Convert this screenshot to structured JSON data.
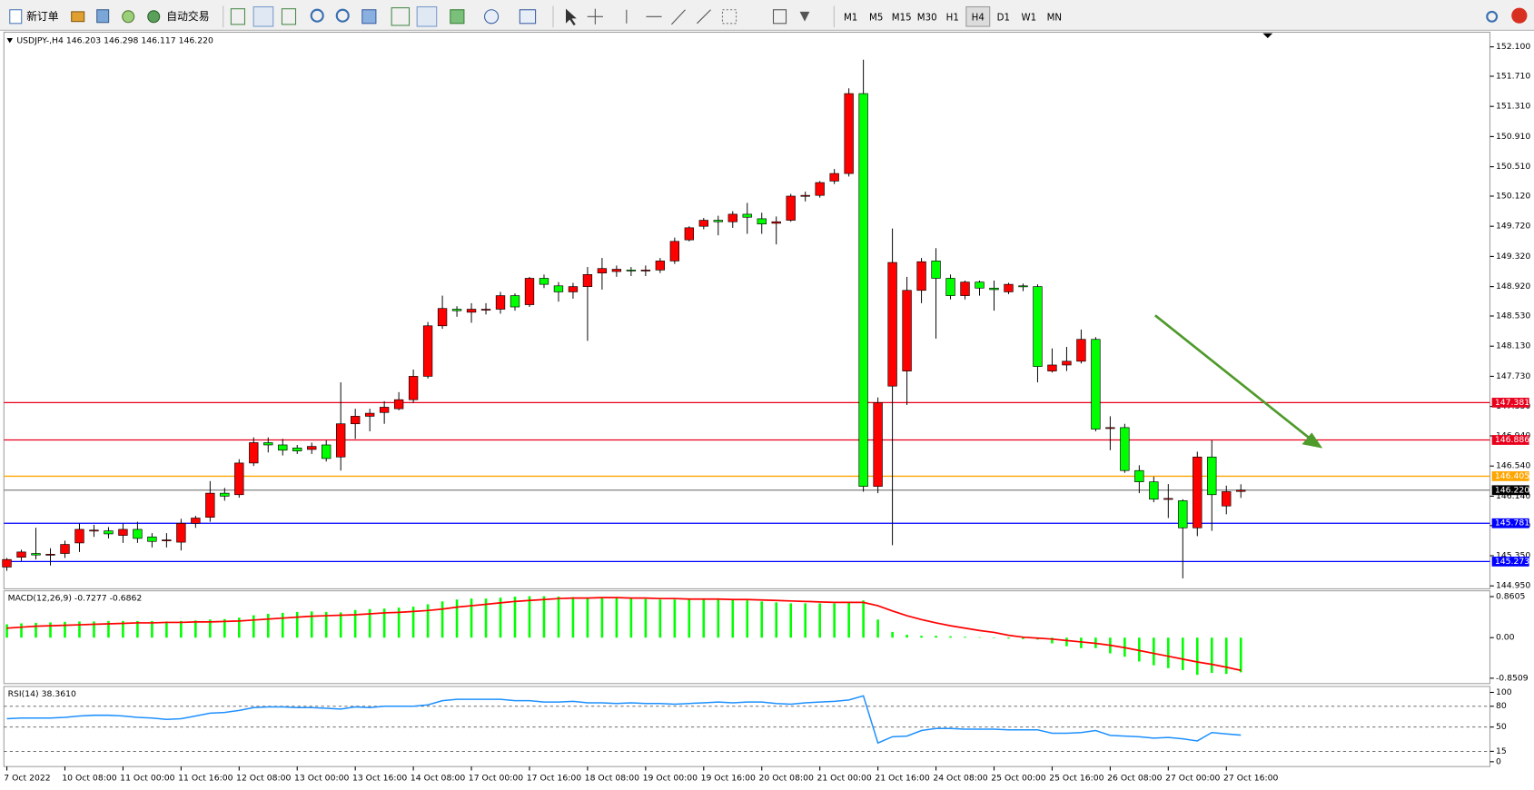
{
  "toolbar": {
    "new_order": "新订单",
    "auto_trading": "自动交易",
    "timeframes": [
      "M1",
      "M5",
      "M15",
      "M30",
      "H1",
      "H4",
      "D1",
      "W1",
      "MN"
    ],
    "active_timeframe": "H4"
  },
  "chart_data": [
    {
      "type": "candlestick",
      "title": "USDJPY-,H4  146.203 146.298 146.117 146.220",
      "categories": [
        "7 Oct 2022",
        null,
        null,
        null,
        "10 Oct 08:00",
        null,
        null,
        null,
        "11 Oct 00:00",
        null,
        null,
        null,
        "11 Oct 16:00",
        null,
        null,
        null,
        "12 Oct 08:00",
        null,
        null,
        null,
        "13 Oct 00:00",
        null,
        null,
        null,
        "13 Oct 16:00",
        null,
        null,
        null,
        "14 Oct 08:00",
        null,
        null,
        null,
        "17 Oct 00:00",
        null,
        null,
        null,
        "17 Oct 16:00",
        null,
        null,
        null,
        "18 Oct 08:00",
        null,
        null,
        null,
        "19 Oct 00:00",
        null,
        null,
        null,
        "19 Oct 16:00",
        null,
        null,
        null,
        "20 Oct 08:00",
        null,
        null,
        null,
        "21 Oct 00:00",
        null,
        null,
        null,
        "21 Oct 16:00",
        null,
        null,
        null,
        "24 Oct 08:00",
        null,
        null,
        null,
        "25 Oct 00:00",
        null,
        null,
        null,
        "25 Oct 16:00",
        null,
        null,
        null,
        "26 Oct 08:00",
        null,
        null,
        null,
        "27 Oct 00:00",
        null,
        null,
        null,
        "27 Oct 16:00",
        null
      ],
      "open": [
        145.2,
        145.33,
        145.38,
        145.36,
        145.38,
        145.52,
        145.68,
        145.68,
        145.62,
        145.7,
        145.6,
        145.55,
        145.53,
        145.78,
        145.86,
        146.18,
        146.16,
        146.58,
        146.85,
        146.82,
        146.78,
        146.76,
        146.82,
        146.66,
        147.1,
        147.2,
        147.25,
        147.3,
        147.42,
        147.73,
        148.4,
        148.62,
        148.58,
        148.61,
        148.62,
        148.8,
        148.68,
        149.03,
        148.93,
        148.85,
        148.92,
        149.1,
        149.12,
        149.14,
        149.13,
        149.14,
        149.26,
        149.54,
        149.72,
        149.8,
        149.78,
        149.88,
        149.82,
        149.76,
        149.8,
        150.12,
        150.13,
        150.32,
        150.42,
        151.48,
        146.27,
        147.6,
        147.8,
        148.87,
        149.26,
        149.03,
        148.8,
        148.98,
        148.9,
        148.85,
        148.93,
        148.92,
        147.8,
        147.88,
        147.93,
        148.22,
        147.04,
        147.05,
        146.48,
        146.33,
        146.1,
        146.08,
        145.72,
        146.66,
        146.01,
        146.203
      ],
      "high": [
        145.32,
        145.43,
        145.72,
        145.45,
        145.55,
        145.78,
        145.76,
        145.73,
        145.78,
        145.8,
        145.65,
        145.65,
        145.84,
        145.88,
        146.34,
        146.25,
        146.63,
        146.92,
        146.92,
        146.9,
        146.82,
        146.85,
        146.88,
        147.65,
        147.3,
        147.3,
        147.4,
        147.52,
        147.82,
        148.45,
        148.8,
        148.66,
        148.7,
        148.7,
        148.85,
        148.83,
        149.05,
        149.08,
        148.98,
        148.97,
        149.18,
        149.3,
        149.2,
        149.18,
        149.2,
        149.3,
        149.57,
        149.72,
        149.83,
        149.86,
        149.92,
        150.03,
        149.9,
        149.85,
        150.15,
        150.18,
        150.32,
        150.48,
        151.55,
        151.93,
        147.45,
        149.69,
        149.05,
        149.3,
        149.43,
        149.08,
        149.0,
        149.0,
        149.0,
        148.97,
        148.96,
        148.95,
        148.1,
        148.12,
        148.35,
        148.25,
        147.2,
        147.1,
        146.55,
        146.4,
        146.3,
        146.1,
        146.73,
        146.88,
        146.28,
        146.298
      ],
      "low": [
        145.15,
        145.28,
        145.3,
        145.22,
        145.32,
        145.4,
        145.6,
        145.58,
        145.52,
        145.52,
        145.46,
        145.46,
        145.42,
        145.72,
        145.8,
        146.08,
        146.12,
        146.54,
        146.72,
        146.68,
        146.7,
        146.7,
        146.6,
        146.48,
        146.9,
        147.0,
        147.1,
        147.28,
        147.38,
        147.7,
        148.36,
        148.52,
        148.44,
        148.55,
        148.56,
        148.6,
        148.65,
        148.9,
        148.72,
        148.76,
        148.2,
        148.88,
        149.05,
        149.06,
        149.06,
        149.1,
        149.22,
        149.52,
        149.68,
        149.6,
        149.7,
        149.62,
        149.62,
        149.48,
        149.78,
        150.05,
        150.1,
        150.28,
        150.38,
        146.2,
        146.18,
        145.49,
        147.35,
        148.7,
        148.23,
        148.75,
        148.75,
        148.8,
        148.6,
        148.82,
        148.86,
        147.65,
        147.78,
        147.8,
        147.9,
        147.0,
        146.75,
        146.45,
        146.18,
        146.06,
        145.85,
        145.05,
        145.61,
        145.68,
        145.9,
        146.117
      ],
      "close": [
        145.3,
        145.4,
        145.36,
        145.37,
        145.5,
        145.7,
        145.69,
        145.64,
        145.7,
        145.58,
        145.54,
        145.56,
        145.78,
        145.85,
        146.18,
        146.14,
        146.58,
        146.85,
        146.82,
        146.75,
        146.74,
        146.8,
        146.64,
        147.1,
        147.2,
        147.24,
        147.32,
        147.42,
        147.73,
        148.4,
        148.63,
        148.6,
        148.62,
        148.62,
        148.8,
        148.65,
        149.03,
        148.95,
        148.85,
        148.92,
        149.08,
        149.16,
        149.15,
        149.13,
        149.14,
        149.26,
        149.52,
        149.7,
        149.8,
        149.78,
        149.88,
        149.84,
        149.75,
        149.78,
        150.12,
        150.13,
        150.3,
        150.42,
        151.48,
        146.27,
        147.38,
        149.24,
        148.87,
        149.25,
        149.03,
        148.8,
        148.98,
        148.9,
        148.88,
        148.95,
        148.92,
        147.86,
        147.88,
        147.93,
        148.22,
        147.03,
        147.05,
        146.48,
        146.33,
        146.1,
        146.11,
        145.72,
        146.66,
        146.16,
        146.2,
        146.22
      ],
      "up_color": "#ff0000",
      "down_color": "#00ff00",
      "ylim": [
        144.911,
        152.294
      ],
      "yticks": [
        {
          "value": 152.1,
          "label": "152.100"
        },
        {
          "value": 151.71,
          "label": "151.710"
        },
        {
          "value": 151.31,
          "label": "151.310"
        },
        {
          "value": 150.91,
          "label": "150.910"
        },
        {
          "value": 150.51,
          "label": "150.510"
        },
        {
          "value": 150.12,
          "label": "150.120"
        },
        {
          "value": 149.72,
          "label": "149.720"
        },
        {
          "value": 149.32,
          "label": "149.320"
        },
        {
          "value": 148.92,
          "label": "148.920"
        },
        {
          "value": 148.53,
          "label": "148.530"
        },
        {
          "value": 148.13,
          "label": "148.130"
        },
        {
          "value": 147.73,
          "label": "147.730"
        },
        {
          "value": 147.33,
          "label": "147.330"
        },
        {
          "value": 146.94,
          "label": "146.940"
        },
        {
          "value": 146.54,
          "label": "146.540"
        },
        {
          "value": 146.14,
          "label": "146.140"
        },
        {
          "value": 145.75,
          "label": "145.750"
        },
        {
          "value": 145.35,
          "label": "145.350"
        },
        {
          "value": 144.95,
          "label": "144.950"
        }
      ],
      "hlines": [
        {
          "value": 147.381,
          "color": "#e8001c"
        },
        {
          "value": 146.886,
          "color": "#e8001c"
        },
        {
          "value": 146.405,
          "color": "#ffa500"
        },
        {
          "value": 146.22,
          "label": "146.220",
          "color": "#808080"
        },
        {
          "value": 145.781,
          "color": "#0000ff"
        },
        {
          "value": 145.273,
          "color": "#0000ff"
        }
      ]
    },
    {
      "type": "macd",
      "title": "MACD(12,26,9) -0.7277 -0.6862",
      "values": [
        0.28,
        0.3,
        0.31,
        0.32,
        0.33,
        0.34,
        0.34,
        0.35,
        0.35,
        0.35,
        0.35,
        0.34,
        0.35,
        0.36,
        0.38,
        0.39,
        0.42,
        0.47,
        0.5,
        0.52,
        0.54,
        0.55,
        0.54,
        0.53,
        0.58,
        0.6,
        0.61,
        0.63,
        0.65,
        0.7,
        0.76,
        0.8,
        0.82,
        0.82,
        0.84,
        0.86,
        0.87,
        0.87,
        0.86,
        0.85,
        0.84,
        0.84,
        0.83,
        0.82,
        0.81,
        0.8,
        0.8,
        0.8,
        0.8,
        0.8,
        0.79,
        0.78,
        0.76,
        0.74,
        0.72,
        0.72,
        0.72,
        0.72,
        0.74,
        0.78,
        0.38,
        0.12,
        0.06,
        0.04,
        0.04,
        0.03,
        0.02,
        0.01,
        0.0,
        -0.02,
        -0.03,
        -0.04,
        -0.12,
        -0.18,
        -0.22,
        -0.22,
        -0.33,
        -0.4,
        -0.5,
        -0.58,
        -0.64,
        -0.68,
        -0.78,
        -0.74,
        -0.76,
        -0.7277
      ],
      "color": "#00ff00",
      "signal": [
        0.2,
        0.22,
        0.24,
        0.25,
        0.26,
        0.27,
        0.28,
        0.29,
        0.3,
        0.31,
        0.31,
        0.32,
        0.32,
        0.33,
        0.33,
        0.34,
        0.35,
        0.37,
        0.39,
        0.41,
        0.43,
        0.45,
        0.46,
        0.47,
        0.48,
        0.5,
        0.52,
        0.53,
        0.55,
        0.57,
        0.6,
        0.64,
        0.67,
        0.7,
        0.73,
        0.76,
        0.78,
        0.8,
        0.82,
        0.83,
        0.83,
        0.84,
        0.84,
        0.83,
        0.83,
        0.82,
        0.82,
        0.81,
        0.81,
        0.81,
        0.8,
        0.8,
        0.79,
        0.78,
        0.77,
        0.76,
        0.75,
        0.74,
        0.74,
        0.74,
        0.67,
        0.56,
        0.46,
        0.38,
        0.31,
        0.25,
        0.2,
        0.15,
        0.11,
        0.05,
        0.01,
        -0.01,
        -0.03,
        -0.06,
        -0.09,
        -0.12,
        -0.16,
        -0.21,
        -0.27,
        -0.33,
        -0.39,
        -0.45,
        -0.51,
        -0.56,
        -0.62,
        -0.6862
      ],
      "signal_color": "#ff0000",
      "ylim": [
        -0.963,
        0.983
      ],
      "yticks": [
        0.8605,
        {
          "value": 0,
          "label": "0.00"
        },
        -0.8509
      ]
    },
    {
      "type": "line",
      "title": "RSI(14) 38.3610",
      "values": [
        62,
        63,
        63,
        63,
        64,
        66,
        67,
        67,
        66,
        64,
        63,
        61,
        62,
        66,
        70,
        71,
        74,
        78,
        79,
        79,
        78,
        78,
        77,
        76,
        79,
        78,
        80,
        80,
        80,
        82,
        88,
        90,
        90,
        90,
        90,
        88,
        88,
        86,
        86,
        87,
        85,
        85,
        84,
        85,
        84,
        84,
        83,
        84,
        85,
        86,
        85,
        86,
        86,
        84,
        83,
        85,
        86,
        87,
        89,
        95,
        27,
        36,
        37,
        45,
        48,
        48,
        47,
        47,
        47,
        46,
        46,
        46,
        41,
        41,
        42,
        45,
        38,
        37,
        36,
        34,
        35,
        33,
        30,
        42,
        40,
        38.361
      ],
      "color": "#1e90ff",
      "ylim": [
        -7,
        108.5
      ],
      "yticks": [
        100,
        80,
        50,
        15,
        0
      ]
    }
  ]
}
